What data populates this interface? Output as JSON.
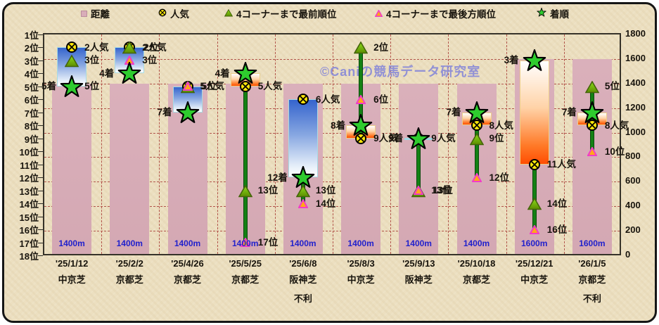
{
  "legend": {
    "items": [
      {
        "id": "distance",
        "label": "距離"
      },
      {
        "id": "popularity",
        "label": "人気"
      },
      {
        "id": "front",
        "label": "4コーナーまで最前順位"
      },
      {
        "id": "rear",
        "label": "4コーナーまで最後方順位"
      },
      {
        "id": "finish",
        "label": "着順"
      }
    ]
  },
  "watermark": "©Caniの競馬データ研究室",
  "axes": {
    "left_labels": [
      "1位",
      "2位",
      "3位",
      "4位",
      "5位",
      "6位",
      "7位",
      "8位",
      "9位",
      "10位",
      "11位",
      "12位",
      "13位",
      "14位",
      "15位",
      "16位",
      "17位",
      "18位"
    ],
    "right_labels": [
      "1800",
      "1600",
      "1400",
      "1200",
      "1000",
      "800",
      "600",
      "400",
      "200",
      "0"
    ]
  },
  "columns": [
    {
      "date": "'25/1/12",
      "venue": "中京芝",
      "note": "",
      "distance": 1400,
      "distance_label": "1400m",
      "popularity": 2,
      "front": 3,
      "rear": 5,
      "finish": 5,
      "bar": {
        "type": "blue",
        "from": 2,
        "to": 5
      },
      "line": null,
      "labels": [
        {
          "text": "2人気",
          "rank": 2,
          "side": "right"
        },
        {
          "text": "3位",
          "rank": 3,
          "side": "right"
        },
        {
          "text": "5位",
          "rank": 5,
          "side": "right"
        },
        {
          "text": "5着",
          "rank": 5,
          "side": "left"
        }
      ]
    },
    {
      "date": "'25/2/2",
      "venue": "京都芝",
      "note": "",
      "distance": 1400,
      "distance_label": "1400m",
      "popularity": 2,
      "front": 2,
      "rear": 3,
      "finish": 4,
      "bar": {
        "type": "blue",
        "from": 2,
        "to": 4
      },
      "line": null,
      "labels": [
        {
          "text": "2位",
          "rank": 2,
          "side": "right2"
        },
        {
          "text": "2人気",
          "rank": 2,
          "side": "right"
        },
        {
          "text": "3位",
          "rank": 3,
          "side": "right"
        },
        {
          "text": "4着",
          "rank": 4,
          "side": "left"
        }
      ]
    },
    {
      "date": "'25/4/26",
      "venue": "京都芝",
      "note": "",
      "distance": 1400,
      "distance_label": "1400m",
      "popularity": 5,
      "front": 5,
      "rear": 5,
      "finish": 7,
      "bar": {
        "type": "blue",
        "from": 5,
        "to": 7
      },
      "line": null,
      "labels": [
        {
          "text": "5位",
          "rank": 5,
          "side": "right2"
        },
        {
          "text": "5人気",
          "rank": 5,
          "side": "right"
        },
        {
          "text": "7着",
          "rank": 7,
          "side": "left"
        }
      ]
    },
    {
      "date": "'25/5/25",
      "venue": "京都芝",
      "note": "",
      "distance": 1400,
      "distance_label": "1400m",
      "popularity": 5,
      "front": 13,
      "rear": 17,
      "finish": 4,
      "bar": {
        "type": "orange",
        "from": 4,
        "to": 5
      },
      "line": {
        "from": 5,
        "to": 17
      },
      "labels": [
        {
          "text": "4着",
          "rank": 4,
          "side": "left"
        },
        {
          "text": "5人気",
          "rank": 5,
          "side": "right"
        },
        {
          "text": "13位",
          "rank": 13,
          "side": "right"
        },
        {
          "text": "17位",
          "rank": 17,
          "side": "right"
        }
      ]
    },
    {
      "date": "'25/6/8",
      "venue": "阪神芝",
      "note": "不利",
      "distance": 1400,
      "distance_label": "1400m",
      "popularity": 6,
      "front": 13,
      "rear": 14,
      "finish": 12,
      "bar": {
        "type": "blue",
        "from": 6,
        "to": 12
      },
      "line": {
        "from": 12,
        "to": 14
      },
      "labels": [
        {
          "text": "6人気",
          "rank": 6,
          "side": "right"
        },
        {
          "text": "12着",
          "rank": 12,
          "side": "left"
        },
        {
          "text": "13位",
          "rank": 13,
          "side": "right"
        },
        {
          "text": "14位",
          "rank": 14,
          "side": "right"
        }
      ]
    },
    {
      "date": "'25/8/3",
      "venue": "中京芝",
      "note": "",
      "distance": 1400,
      "distance_label": "1400m",
      "popularity": 9,
      "front": 2,
      "rear": 6,
      "finish": 8,
      "bar": {
        "type": "orange",
        "from": 8,
        "to": 9
      },
      "line": {
        "from": 2,
        "to": 9
      },
      "labels": [
        {
          "text": "2位",
          "rank": 2,
          "side": "right"
        },
        {
          "text": "6位",
          "rank": 6,
          "side": "right"
        },
        {
          "text": "8着",
          "rank": 8,
          "side": "left"
        },
        {
          "text": "9人気",
          "rank": 9,
          "side": "right"
        }
      ]
    },
    {
      "date": "'25/9/13",
      "venue": "阪神芝",
      "note": "",
      "distance": 1400,
      "distance_label": "1400m",
      "popularity": 9,
      "front": 13,
      "rear": 13,
      "finish": 9,
      "bar": {
        "type": "flat",
        "from": 9,
        "to": 9
      },
      "line": {
        "from": 9,
        "to": 13
      },
      "labels": [
        {
          "text": "9着",
          "rank": 9,
          "side": "left"
        },
        {
          "text": "9人気",
          "rank": 9,
          "side": "right"
        },
        {
          "text": "13位",
          "rank": 13,
          "side": "right2"
        },
        {
          "text": "13位",
          "rank": 13,
          "side": "right"
        }
      ]
    },
    {
      "date": "'25/10/18",
      "venue": "京都芝",
      "note": "",
      "distance": 1400,
      "distance_label": "1400m",
      "popularity": 8,
      "front": 9,
      "rear": 12,
      "finish": 7,
      "bar": {
        "type": "orange",
        "from": 7,
        "to": 8
      },
      "line": {
        "from": 8,
        "to": 12
      },
      "labels": [
        {
          "text": "7着",
          "rank": 7,
          "side": "left"
        },
        {
          "text": "8人気",
          "rank": 8,
          "side": "right"
        },
        {
          "text": "9位",
          "rank": 9,
          "side": "right"
        },
        {
          "text": "12位",
          "rank": 12,
          "side": "right"
        }
      ]
    },
    {
      "date": "'25/12/21",
      "venue": "中京芝",
      "note": "",
      "distance": 1600,
      "distance_label": "1600m",
      "popularity": 11,
      "front": 14,
      "rear": 16,
      "finish": 3,
      "bar": {
        "type": "orange",
        "from": 3,
        "to": 11
      },
      "line": {
        "from": 11,
        "to": 16
      },
      "labels": [
        {
          "text": "3着",
          "rank": 3,
          "side": "left"
        },
        {
          "text": "11人気",
          "rank": 11,
          "side": "right"
        },
        {
          "text": "14位",
          "rank": 14,
          "side": "right"
        },
        {
          "text": "16位",
          "rank": 16,
          "side": "right"
        }
      ]
    },
    {
      "date": "'26/1/5",
      "venue": "京都芝",
      "note": "不利",
      "distance": 1600,
      "distance_label": "1600m",
      "popularity": 8,
      "front": 5,
      "rear": 10,
      "finish": 7,
      "bar": {
        "type": "orange",
        "from": 7,
        "to": 8
      },
      "line": {
        "from": 5,
        "to": 10
      },
      "labels": [
        {
          "text": "5位",
          "rank": 5,
          "side": "right"
        },
        {
          "text": "7着",
          "rank": 7,
          "side": "left"
        },
        {
          "text": "8人気",
          "rank": 8,
          "side": "right"
        },
        {
          "text": "10位",
          "rank": 10,
          "side": "right"
        }
      ]
    }
  ],
  "colors": {
    "background": "#ecdfc0",
    "frame_border": "#161616",
    "grid": "#b2544b",
    "plot_border": "#363229",
    "distance_bar": "#d9adb9",
    "blue_bar_top": "#3564cd",
    "orange_bar_bottom": "#ff4d02",
    "hilo_line": "#148114",
    "star": "#2ecc2e",
    "front_triangle": "#76c60f",
    "rear_triangle_fill": "#ffa818",
    "rear_triangle_stroke": "#f23cc8",
    "popularity_fill": "#ffe60a",
    "distance_label": "#2121cc",
    "watermark": "#8c8cd6"
  },
  "chart_data": {
    "type": "scatter",
    "title": "",
    "categories": [
      "'25/1/12 中京芝",
      "'25/2/2 京都芝",
      "'25/4/26 京都芝",
      "'25/5/25 京都芝",
      "'25/6/8 阪神芝",
      "'25/8/3 中京芝",
      "'25/9/13 阪神芝",
      "'25/10/18 京都芝",
      "'25/12/21 中京芝",
      "'26/1/5 京都芝"
    ],
    "notes": [
      "",
      "",
      "",
      "",
      "不利",
      "",
      "",
      "",
      "",
      "不利"
    ],
    "left_axis": {
      "unit": "位",
      "range": [
        1,
        18
      ],
      "inverted": true
    },
    "right_axis": {
      "range": [
        0,
        1800
      ],
      "tick_step": 200
    },
    "legend_position": "top",
    "grid": true,
    "series": [
      {
        "name": "距離",
        "type": "bar",
        "axis": "right",
        "values": [
          1400,
          1400,
          1400,
          1400,
          1400,
          1400,
          1400,
          1400,
          1600,
          1600
        ]
      },
      {
        "name": "人気",
        "type": "scatter",
        "axis": "left",
        "values": [
          2,
          2,
          5,
          5,
          6,
          9,
          9,
          8,
          11,
          8
        ]
      },
      {
        "name": "4コーナーまで最前順位",
        "type": "scatter",
        "axis": "left",
        "values": [
          3,
          2,
          5,
          13,
          13,
          2,
          13,
          9,
          14,
          5
        ]
      },
      {
        "name": "4コーナーまで最後方順位",
        "type": "scatter",
        "axis": "left",
        "values": [
          5,
          3,
          5,
          17,
          14,
          6,
          13,
          12,
          16,
          10
        ]
      },
      {
        "name": "着順",
        "type": "scatter",
        "axis": "left",
        "values": [
          5,
          4,
          7,
          4,
          12,
          8,
          9,
          7,
          3,
          7
        ]
      },
      {
        "name": "人気-着順レンジバー",
        "type": "range",
        "axis": "left",
        "ranges": [
          [
            2,
            5
          ],
          [
            2,
            4
          ],
          [
            5,
            7
          ],
          [
            4,
            5
          ],
          [
            6,
            12
          ],
          [
            8,
            9
          ],
          [
            9,
            9
          ],
          [
            7,
            8
          ],
          [
            3,
            11
          ],
          [
            7,
            8
          ]
        ],
        "direction": [
          "worse",
          "worse",
          "worse",
          "better",
          "worse",
          "better",
          "even",
          "better",
          "better",
          "better"
        ]
      }
    ]
  }
}
